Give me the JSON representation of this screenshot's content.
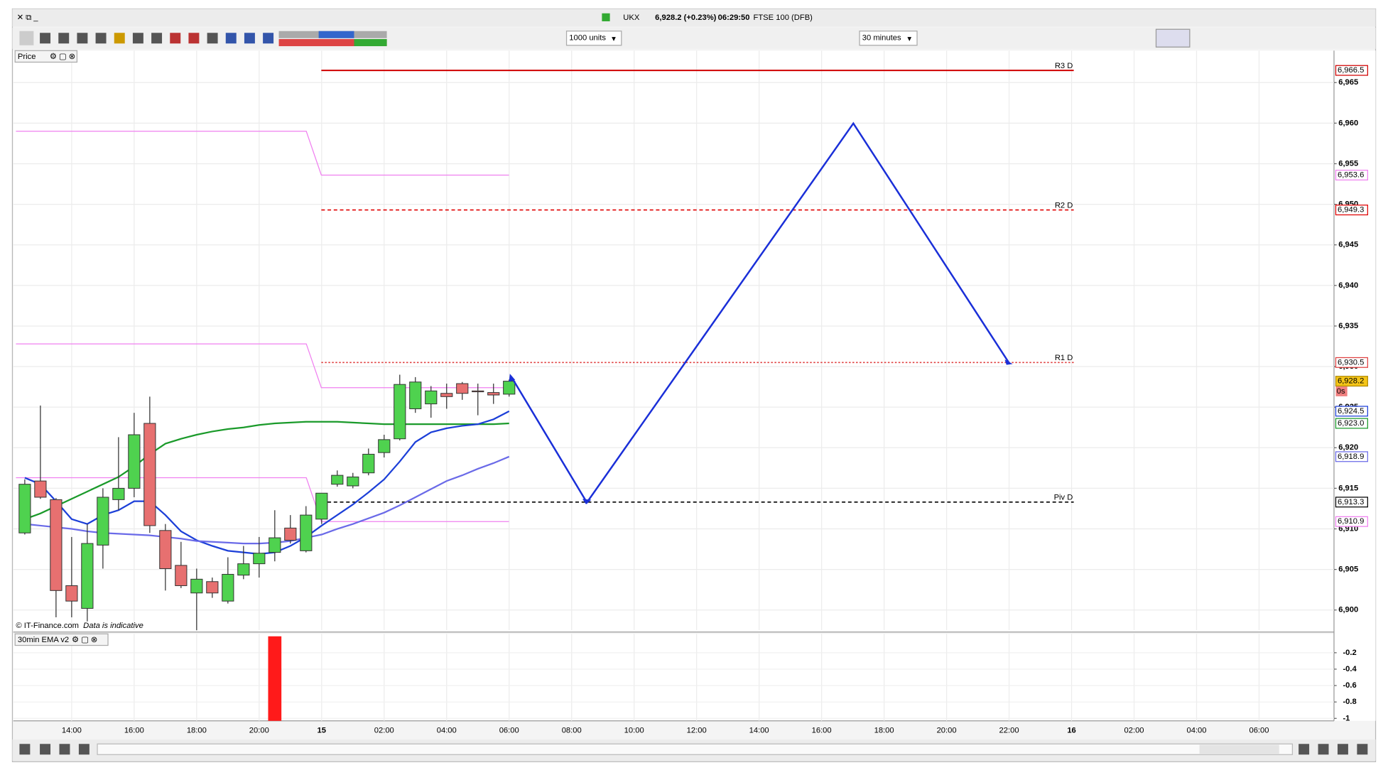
{
  "window": {
    "symbol": "UKX",
    "quote": "6,928.2 (+0.23%)",
    "time": "06:29:50",
    "instrument": "FTSE 100 (DFB)"
  },
  "toolbar": {
    "size": "1000 units",
    "interval": "30 minutes"
  },
  "chart_data": [
    {
      "type": "candlestick",
      "panel_label": "Price",
      "copyright": "© IT-Finance.com",
      "note": "Data is indicative",
      "grid": true,
      "categories": [
        null,
        null,
        null,
        "14:00",
        null,
        null,
        null,
        "16:00",
        null,
        null,
        null,
        "18:00",
        null,
        null,
        null,
        "20:00",
        null,
        null,
        null,
        "15",
        null,
        null,
        null,
        "02:00",
        null,
        null,
        null,
        "04:00",
        null,
        null,
        null,
        "06:00",
        null,
        null,
        null,
        "08:00",
        null,
        null,
        null,
        "10:00",
        null,
        null,
        null,
        "12:00",
        null,
        null,
        null,
        "14:00",
        null,
        null,
        null,
        "16:00",
        null,
        null,
        null,
        "18:00",
        null,
        null,
        null,
        "20:00",
        null,
        null,
        null,
        "22:00",
        null,
        null,
        null,
        "16",
        null,
        null,
        null,
        "02:00",
        null,
        null,
        null,
        "04:00",
        null,
        null,
        null,
        "06:00"
      ],
      "open": [
        6909.5,
        6915.9,
        6913.6,
        6903.0,
        6900.2,
        6908.0,
        6913.6,
        6915.0,
        6923.0,
        6909.8,
        6905.5,
        6902.1,
        6903.5,
        6901.1,
        6904.3,
        6905.7,
        6907.1,
        6910.1,
        6907.3,
        6911.2,
        6915.5,
        6915.3,
        6916.9,
        6919.4,
        6921.1,
        6924.8,
        6925.4,
        6926.7,
        6927.9,
        6927.0,
        6926.8,
        6926.6,
        null,
        null,
        null,
        null,
        null,
        null,
        null,
        null,
        null,
        null,
        null,
        null,
        null,
        null,
        null,
        null,
        null,
        null,
        null,
        null,
        null,
        null,
        null,
        null,
        null,
        null,
        null,
        null,
        null,
        null,
        null,
        null,
        null,
        null,
        null,
        null,
        null,
        null,
        null,
        null,
        null,
        null,
        null,
        null,
        null,
        null,
        null,
        null
      ],
      "high": [
        6916.1,
        6925.2,
        6913.8,
        6909.0,
        6910.6,
        6915.0,
        6921.3,
        6924.3,
        6926.3,
        6910.6,
        6908.4,
        6905.1,
        6904.0,
        6906.5,
        6907.9,
        6909.0,
        6912.3,
        6911.7,
        6912.8,
        6914.4,
        6917.2,
        6916.9,
        6919.9,
        6921.6,
        6929.0,
        6928.7,
        6927.6,
        6927.9,
        6928.1,
        6927.9,
        6927.9,
        6928.4,
        null,
        null,
        null,
        null,
        null,
        null,
        null,
        null,
        null,
        null,
        null,
        null,
        null,
        null,
        null,
        null,
        null,
        null,
        null,
        null,
        null,
        null,
        null,
        null,
        null,
        null,
        null,
        null,
        null,
        null,
        null,
        null,
        null,
        null,
        null,
        null,
        null,
        null,
        null,
        null,
        null,
        null,
        null,
        null,
        null,
        null,
        null,
        null
      ],
      "low": [
        6909.3,
        6913.7,
        6899.1,
        6899.1,
        6898.6,
        6905.1,
        6912.3,
        6913.9,
        6909.5,
        6902.4,
        6902.7,
        6897.5,
        6901.5,
        6900.8,
        6903.8,
        6904.0,
        6906.0,
        6908.2,
        6907.1,
        6910.6,
        6915.2,
        6915.0,
        6916.6,
        6918.8,
        6920.9,
        6924.3,
        6923.7,
        6924.8,
        6925.9,
        6924.0,
        6925.4,
        6926.3,
        null,
        null,
        null,
        null,
        null,
        null,
        null,
        null,
        null,
        null,
        null,
        null,
        null,
        null,
        null,
        null,
        null,
        null,
        null,
        null,
        null,
        null,
        null,
        null,
        null,
        null,
        null,
        null,
        null,
        null,
        null,
        null,
        null,
        null,
        null,
        null,
        null,
        null,
        null,
        null,
        null,
        null,
        null,
        null,
        null,
        null,
        null,
        null
      ],
      "close": [
        6915.5,
        6913.9,
        6902.4,
        6901.1,
        6908.2,
        6913.9,
        6915.0,
        6921.6,
        6910.4,
        6905.1,
        6903.0,
        6903.8,
        6902.1,
        6904.4,
        6905.7,
        6907.0,
        6908.9,
        6908.6,
        6911.7,
        6914.4,
        6916.6,
        6916.4,
        6919.2,
        6921.0,
        6927.8,
        6928.1,
        6927.0,
        6926.3,
        6926.7,
        6926.9,
        6926.5,
        6928.2,
        null,
        null,
        null,
        null,
        null,
        null,
        null,
        null,
        null,
        null,
        null,
        null,
        null,
        null,
        null,
        null,
        null,
        null,
        null,
        null,
        null,
        null,
        null,
        null,
        null,
        null,
        null,
        null,
        null,
        null,
        null,
        null,
        null,
        null,
        null,
        null,
        null,
        null,
        null,
        null,
        null,
        null,
        null,
        null,
        null,
        null,
        null,
        null
      ],
      "series": [
        {
          "color": "#1a9a2a",
          "last_label": "6,923.0",
          "values": [
            6911.2,
            6911.9,
            6912.8,
            6913.7,
            6914.6,
            6915.5,
            6916.4,
            6917.7,
            6919.2,
            6920.5,
            6921.1,
            6921.6,
            6922.0,
            6922.3,
            6922.5,
            6922.8,
            6923.0,
            6923.1,
            6923.2,
            6923.2,
            6923.2,
            6923.1,
            6923.0,
            6922.9,
            6922.9,
            6922.9,
            6922.9,
            6922.9,
            6922.9,
            6922.9,
            6922.9,
            6923.0,
            null,
            null,
            null,
            null,
            null,
            null,
            null,
            null,
            null,
            null,
            null,
            null,
            null,
            null,
            null,
            null,
            null,
            null,
            null,
            null,
            null,
            null,
            null,
            null,
            null,
            null,
            null,
            null,
            null,
            null,
            null,
            null,
            null,
            null,
            null,
            null,
            null,
            null,
            null,
            null,
            null,
            null,
            null,
            null,
            null,
            null,
            null,
            null
          ]
        },
        {
          "color": "#1c3fd8",
          "last_label": "6,924.5",
          "values": [
            6916.3,
            6915.5,
            6913.4,
            6911.2,
            6910.6,
            6911.7,
            6912.3,
            6913.4,
            6913.4,
            6911.7,
            6909.7,
            6908.6,
            6907.9,
            6907.3,
            6907.1,
            6906.9,
            6907.1,
            6907.9,
            6909.0,
            6910.4,
            6911.7,
            6913.0,
            6914.5,
            6916.1,
            6918.3,
            6920.7,
            6921.9,
            6922.4,
            6922.7,
            6922.9,
            6923.5,
            6924.5,
            null,
            null,
            null,
            null,
            null,
            null,
            null,
            null,
            null,
            null,
            null,
            null,
            null,
            null,
            null,
            null,
            null,
            null,
            null,
            null,
            null,
            null,
            null,
            null,
            null,
            null,
            null,
            null,
            null,
            null,
            null,
            null,
            null,
            null,
            null,
            null,
            null,
            null,
            null,
            null,
            null,
            null,
            null,
            null,
            null,
            null,
            null,
            null
          ]
        },
        {
          "color": "#6a6ae8",
          "last_label": "6,918.9",
          "values": [
            6910.6,
            6910.4,
            6910.2,
            6910.0,
            6909.7,
            6909.5,
            6909.4,
            6909.3,
            6909.2,
            6909.0,
            6908.8,
            6908.5,
            6908.4,
            6908.3,
            6908.2,
            6908.2,
            6908.3,
            6908.5,
            6908.9,
            6909.3,
            6910.0,
            6910.6,
            6911.3,
            6912.0,
            6912.9,
            6913.9,
            6914.9,
            6915.9,
            6916.6,
            6917.4,
            6918.1,
            6918.9,
            null,
            null,
            null,
            null,
            null,
            null,
            null,
            null,
            null,
            null,
            null,
            null,
            null,
            null,
            null,
            null,
            null,
            null,
            null,
            null,
            null,
            null,
            null,
            null,
            null,
            null,
            null,
            null,
            null,
            null,
            null,
            null,
            null,
            null,
            null,
            null,
            null,
            null,
            null,
            null,
            null,
            null,
            null,
            null,
            null,
            null,
            null,
            null
          ]
        }
      ],
      "levels": [
        {
          "label": "R3 D",
          "value": 6966.5,
          "value_label": "6,966.5",
          "color": "#d00000",
          "style": "solid"
        },
        {
          "label": "R2 D",
          "value": 6949.3,
          "value_label": "6,949.3",
          "color": "#e00000",
          "style": "dashed"
        },
        {
          "label": "R1 D",
          "value": 6930.5,
          "value_label": "6,930.5",
          "color": "#e04040",
          "style": "dotted"
        },
        {
          "label": "Piv D",
          "value": 6913.3,
          "value_label": "6,913.3",
          "color": "#000000",
          "style": "dashed"
        }
      ],
      "prev_levels_color": "#f080f0",
      "prev_levels": [
        {
          "from": 6959.0,
          "value": 6953.6,
          "value_label": "6,953.6"
        },
        {
          "from": 6932.8,
          "value": 6927.4
        },
        {
          "from": 6916.3,
          "value": 6910.9,
          "value_label": "6,910.9"
        }
      ],
      "last_price": {
        "value": 6928.2,
        "label": "6,928.2"
      },
      "timer": "0s",
      "ylim": [
        6897.5,
        6967.3
      ],
      "yticks": [
        {
          "value": 6900,
          "label": "6,900"
        },
        {
          "value": 6905,
          "label": "6,905"
        },
        {
          "value": 6910,
          "label": "6,910"
        },
        {
          "value": 6915,
          "label": "6,915"
        },
        {
          "value": 6920,
          "label": "6,920"
        },
        {
          "value": 6925,
          "label": "6,925"
        },
        {
          "value": 6930,
          "label": "6,930"
        },
        {
          "value": 6935,
          "label": "6,935"
        },
        {
          "value": 6940,
          "label": "6,940"
        },
        {
          "value": 6945,
          "label": "6,945"
        },
        {
          "value": 6950,
          "label": "6,950"
        },
        {
          "value": 6955,
          "label": "6,955"
        },
        {
          "value": 6960,
          "label": "6,960"
        },
        {
          "value": 6965,
          "label": "6,965"
        }
      ]
    },
    {
      "type": "bar",
      "panel_label": "30min EMA v2",
      "color": "#ff1a1a",
      "values": [
        0,
        0,
        0,
        0,
        0,
        0,
        0,
        0,
        0,
        0,
        0,
        0,
        0,
        0,
        0,
        0,
        -1.03,
        0,
        0,
        0,
        0,
        0,
        0,
        0,
        0,
        0,
        0,
        0,
        0,
        0,
        0,
        0,
        null,
        null,
        null,
        null,
        null,
        null,
        null,
        null,
        null,
        null,
        null,
        null,
        null,
        null,
        null,
        null,
        null,
        null,
        null,
        null,
        null,
        null,
        null,
        null,
        null,
        null,
        null,
        null,
        null,
        null,
        null,
        null,
        null,
        null,
        null,
        null,
        null,
        null,
        null,
        null,
        null,
        null,
        null,
        null,
        null,
        null,
        null,
        null
      ],
      "ylim": [
        -1.03,
        0.03
      ],
      "yticks": [
        -0.2,
        -0.4,
        -0.6,
        -0.8,
        -1
      ]
    }
  ]
}
